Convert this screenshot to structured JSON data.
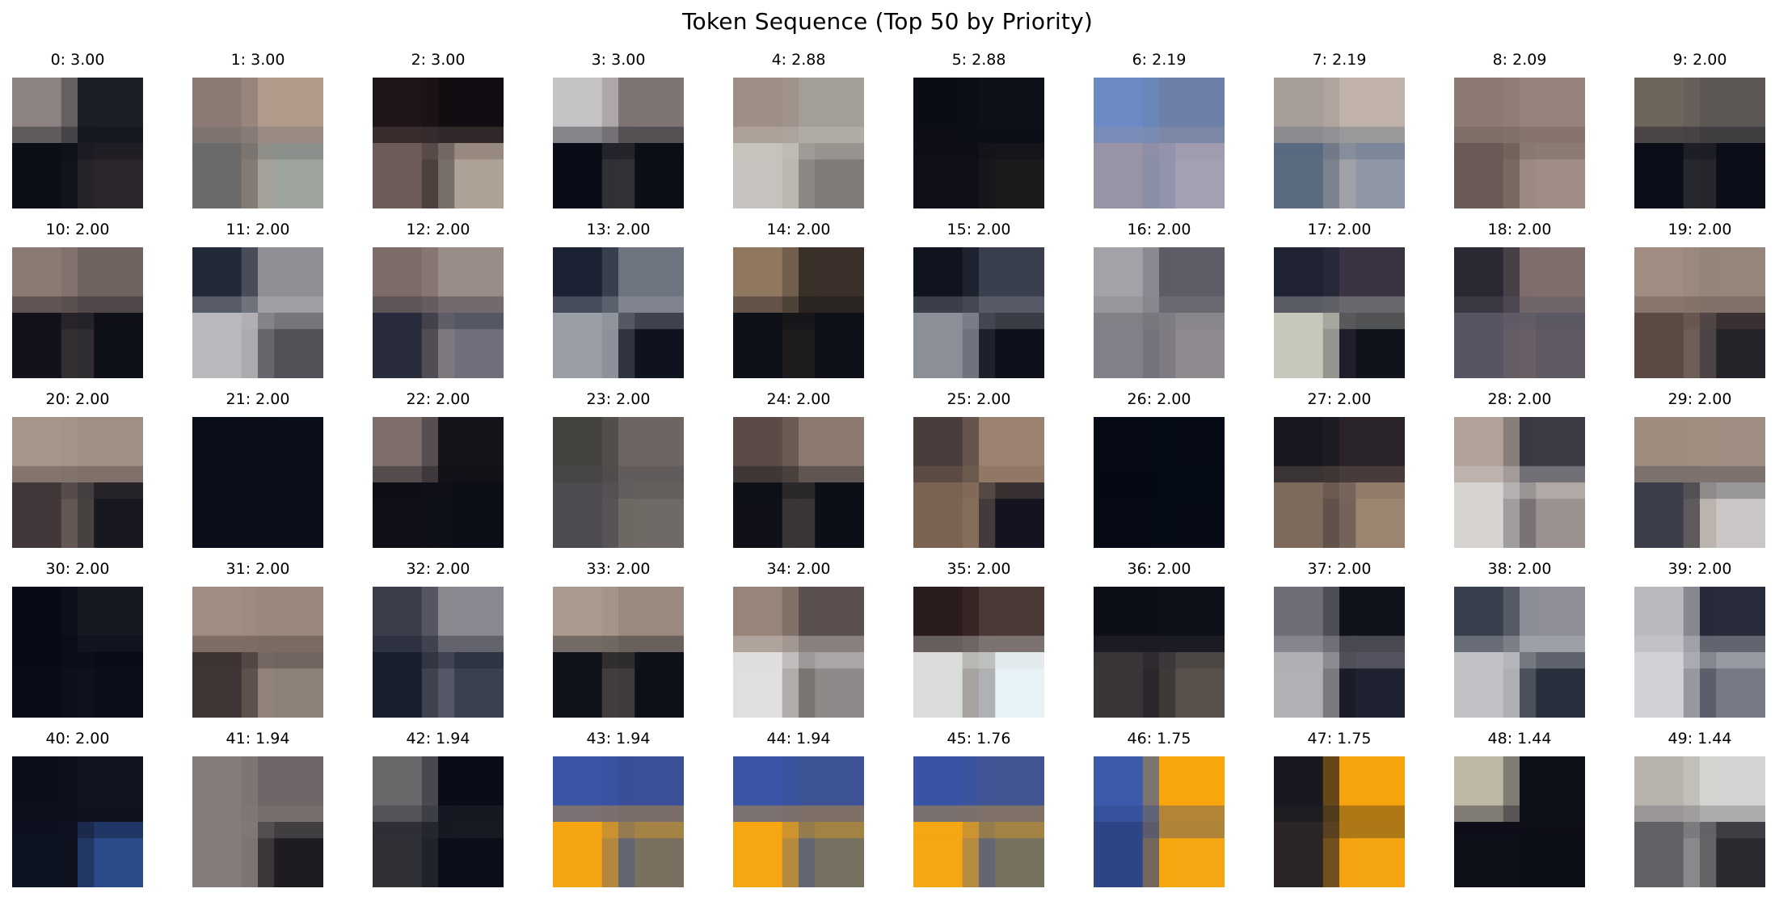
{
  "title": "Token Sequence (Top 50 by Priority)",
  "grid_shape": [
    5,
    10
  ],
  "tokens": [
    {
      "label": "0: 3.00",
      "colors": [
        "#8d8382",
        "#1d1f28",
        "#0c0e18",
        "#2c262c"
      ]
    },
    {
      "label": "1: 3.00",
      "colors": [
        "#8a7a73",
        "#b19c8c",
        "#6b6b6a",
        "#9ea59e"
      ]
    },
    {
      "label": "2: 3.00",
      "colors": [
        "#1f1418",
        "#120d12",
        "#6d5c58",
        "#aea296"
      ]
    },
    {
      "label": "3: 3.00",
      "colors": [
        "#c6c3c6",
        "#7e7474",
        "#0a0d17",
        "#0c0f18"
      ]
    },
    {
      "label": "4: 2.88",
      "colors": [
        "#9f8e86",
        "#a49e99",
        "#c6c3be",
        "#7f7b79"
      ]
    },
    {
      "label": "5: 2.88",
      "colors": [
        "#0b0d16",
        "#0d1019",
        "#0e0f18",
        "#1d1a1e"
      ]
    },
    {
      "label": "6: 2.19",
      "colors": [
        "#6b89c4",
        "#6c80a8",
        "#9894a5",
        "#a59fb2"
      ]
    },
    {
      "label": "7: 2.19",
      "colors": [
        "#a89e99",
        "#c0b2a8",
        "#5a6b80",
        "#8f97a6"
      ]
    },
    {
      "label": "8: 2.09",
      "colors": [
        "#8d7a73",
        "#97837c",
        "#6a5a55",
        "#9f8c84"
      ]
    },
    {
      "label": "9: 2.00",
      "colors": [
        "#6e655d",
        "#5c5755",
        "#0c0e19",
        "#0b0d18"
      ]
    },
    {
      "label": "10: 2.00",
      "colors": [
        "#8a7a74",
        "#706461",
        "#13121a",
        "#0d0f19"
      ]
    },
    {
      "label": "11: 2.00",
      "colors": [
        "#222a3a",
        "#8f8f95",
        "#b9b9bd",
        "#545058"
      ]
    },
    {
      "label": "12: 2.00",
      "colors": [
        "#7d6c68",
        "#9a8d87",
        "#282c3b",
        "#6e6f7b"
      ]
    },
    {
      "label": "13: 2.00",
      "colors": [
        "#1b2233",
        "#6f7580",
        "#9a9fa6",
        "#0f1320"
      ]
    },
    {
      "label": "14: 2.00",
      "colors": [
        "#8f7760",
        "#3a3029",
        "#0e1018",
        "#0e1019"
      ]
    },
    {
      "label": "15: 2.00",
      "colors": [
        "#101420",
        "#3a3f4e",
        "#8b9098",
        "#0e111b"
      ]
    },
    {
      "label": "16: 2.00",
      "colors": [
        "#a3a2a8",
        "#5d5c67",
        "#808088",
        "#8f8a90"
      ]
    },
    {
      "label": "17: 2.00",
      "colors": [
        "#1f2334",
        "#3a3344",
        "#c6c8bb",
        "#11131c"
      ]
    },
    {
      "label": "18: 2.00",
      "colors": [
        "#2a2832",
        "#7f6e6c",
        "#575563",
        "#5f5963"
      ]
    },
    {
      "label": "19: 2.00",
      "colors": [
        "#a08c80",
        "#96857a",
        "#5b4a44",
        "#25232a"
      ]
    },
    {
      "label": "20: 2.00",
      "colors": [
        "#a6958b",
        "#a08f85",
        "#42383a",
        "#171820"
      ]
    },
    {
      "label": "21: 2.00",
      "colors": [
        "#0a0e1a",
        "#0b0f1b",
        "#0a0e1a",
        "#0b0f1b"
      ]
    },
    {
      "label": "22: 2.00",
      "colors": [
        "#7d6e6c",
        "#141319",
        "#0e0f17",
        "#0c0e17"
      ]
    },
    {
      "label": "23: 2.00",
      "colors": [
        "#44423f",
        "#6c6562",
        "#4d4b50",
        "#6f6a65"
      ]
    },
    {
      "label": "24: 2.00",
      "colors": [
        "#5a4b47",
        "#8c7a70",
        "#0f1018",
        "#0d0f18"
      ]
    },
    {
      "label": "25: 2.00",
      "colors": [
        "#4a3e3d",
        "#9b8270",
        "#7a6352",
        "#141420"
      ]
    },
    {
      "label": "26: 2.00",
      "colors": [
        "#050a16",
        "#060b17",
        "#050a16",
        "#060b17"
      ]
    },
    {
      "label": "27: 2.00",
      "colors": [
        "#18171f",
        "#2a242a",
        "#7d6a5c",
        "#9c8570"
      ]
    },
    {
      "label": "28: 2.00",
      "colors": [
        "#b0a199",
        "#3c3a45",
        "#d6d3d1",
        "#9b928f"
      ]
    },
    {
      "label": "29: 2.00",
      "colors": [
        "#9f8c7f",
        "#a18e82",
        "#3c3f4a",
        "#cac6c5"
      ]
    },
    {
      "label": "30: 2.00",
      "colors": [
        "#070b17",
        "#161922",
        "#080c18",
        "#0a0e1a"
      ]
    },
    {
      "label": "31: 2.00",
      "colors": [
        "#a08c80",
        "#9a887c",
        "#3e3534",
        "#8c8078"
      ]
    },
    {
      "label": "32: 2.00",
      "colors": [
        "#3a3d4a",
        "#8a8890",
        "#1a1f2d",
        "#3a4050"
      ]
    },
    {
      "label": "33: 2.00",
      "colors": [
        "#ab9a90",
        "#9a897f",
        "#11131b",
        "#0e1019"
      ]
    },
    {
      "label": "34: 2.00",
      "colors": [
        "#978579",
        "#5a4f4c",
        "#e0dede",
        "#8d8988"
      ]
    },
    {
      "label": "35: 2.00",
      "colors": [
        "#2a1c1c",
        "#4a3a36",
        "#d9dcd9",
        "#e6f2f6"
      ]
    },
    {
      "label": "36: 2.00",
      "colors": [
        "#0d0f18",
        "#0d1019",
        "#3a3538",
        "#57504b"
      ]
    },
    {
      "label": "37: 2.00",
      "colors": [
        "#6f6d78",
        "#11131c",
        "#b2b0b4",
        "#1f2230"
      ]
    },
    {
      "label": "38: 2.00",
      "colors": [
        "#3a3f4e",
        "#8d8e97",
        "#c1c2c6",
        "#2a2f3e"
      ]
    },
    {
      "label": "39: 2.00",
      "colors": [
        "#b9b8bd",
        "#272b3a",
        "#d1d2d6",
        "#777a86"
      ]
    },
    {
      "label": "40: 2.00",
      "colors": [
        "#0b0f1b",
        "#10141f",
        "#0d1220",
        "#2a4a8a"
      ]
    },
    {
      "label": "41: 1.94",
      "colors": [
        "#857c7b",
        "#6f6767",
        "#857d7c",
        "#1e1c22"
      ]
    },
    {
      "label": "42: 1.94",
      "colors": [
        "#6b686c",
        "#0a0d18",
        "#2f2f36",
        "#0b0e19"
      ]
    },
    {
      "label": "43: 1.94",
      "colors": [
        "#3a54a6",
        "#3a5098",
        "#f5a512",
        "#7a7060"
      ]
    },
    {
      "label": "44: 1.94",
      "colors": [
        "#3a55a5",
        "#3e5396",
        "#f6a610",
        "#75705f"
      ]
    },
    {
      "label": "45: 1.76",
      "colors": [
        "#3954a2",
        "#415595",
        "#f4a613",
        "#77715f"
      ]
    },
    {
      "label": "46: 1.75",
      "colors": [
        "#3b5aaa",
        "#f8a60c",
        "#2d4587",
        "#f5a612"
      ]
    },
    {
      "label": "47: 1.75",
      "colors": [
        "#1a1720",
        "#f7a40c",
        "#2b2427",
        "#f5a512"
      ]
    },
    {
      "label": "48: 1.44",
      "colors": [
        "#bdb7a5",
        "#0f111a",
        "#0d0f19",
        "#0d0f18"
      ]
    },
    {
      "label": "49: 1.44",
      "colors": [
        "#b9b3ae",
        "#d5d4d2",
        "#626166",
        "#2a2a30"
      ]
    }
  ]
}
